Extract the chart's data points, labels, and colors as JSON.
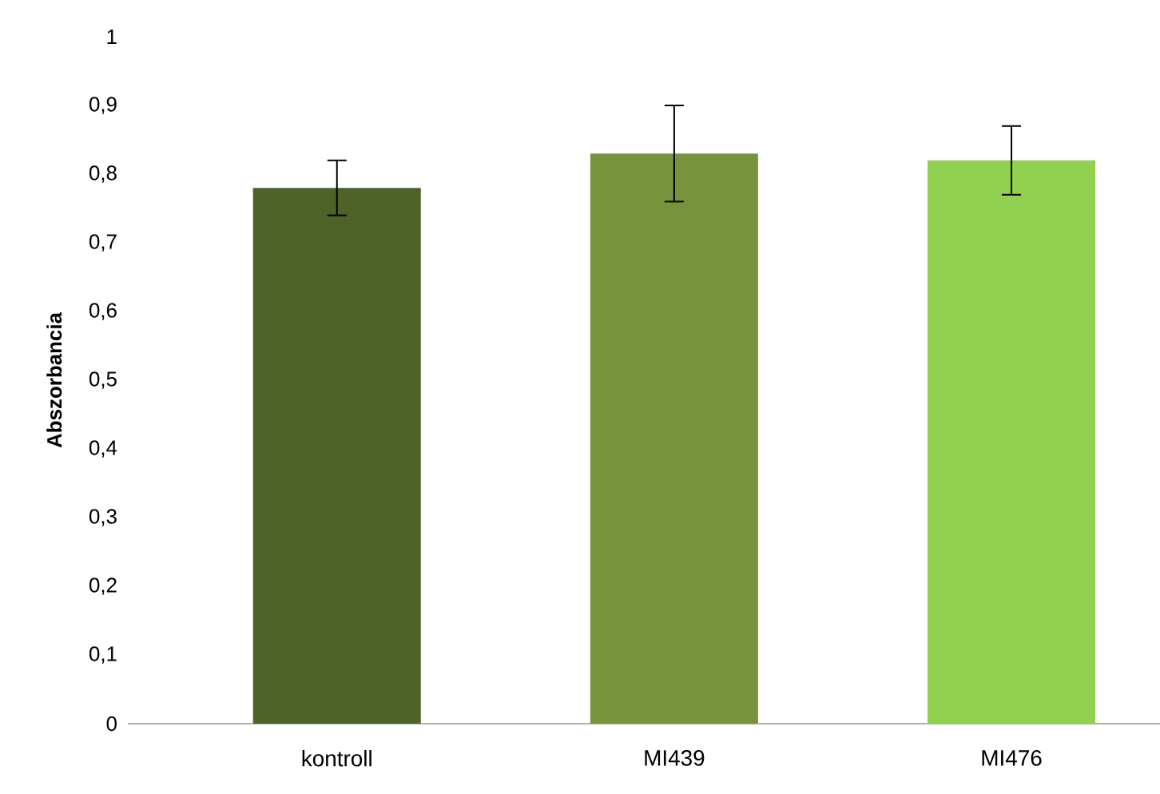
{
  "chart_data": {
    "type": "bar",
    "ylabel": "Abszorbancia",
    "categories": [
      "kontroll",
      "MI439",
      "MI476"
    ],
    "values": [
      0.78,
      0.83,
      0.82
    ],
    "errors": [
      0.04,
      0.07,
      0.05
    ],
    "colors": [
      "#4f6228",
      "#77933c",
      "#92d050"
    ],
    "ylim": [
      0,
      1
    ],
    "yticks": [
      0,
      {
        "value": 0.1,
        "label": "0,1"
      },
      {
        "value": 0.2,
        "label": "0,2"
      },
      {
        "value": 0.3,
        "label": "0,3"
      },
      {
        "value": 0.4,
        "label": "0,4"
      },
      {
        "value": 0.5,
        "label": "0,5"
      },
      {
        "value": 0.6,
        "label": "0,6"
      },
      {
        "value": 0.7,
        "label": "0,7"
      },
      {
        "value": 0.8,
        "label": "0,8"
      },
      {
        "value": 0.9,
        "label": "0,9"
      },
      1
    ],
    "grid": false
  }
}
